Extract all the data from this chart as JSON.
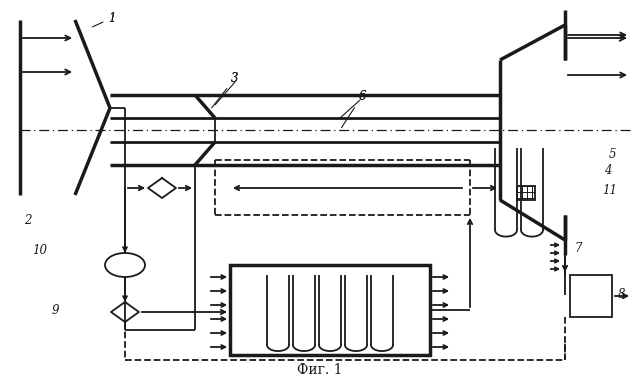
{
  "title": "Фиг. 1",
  "bg_color": "#ffffff",
  "lc": "#1a1a1a",
  "lw": 1.3,
  "tlw": 2.5
}
